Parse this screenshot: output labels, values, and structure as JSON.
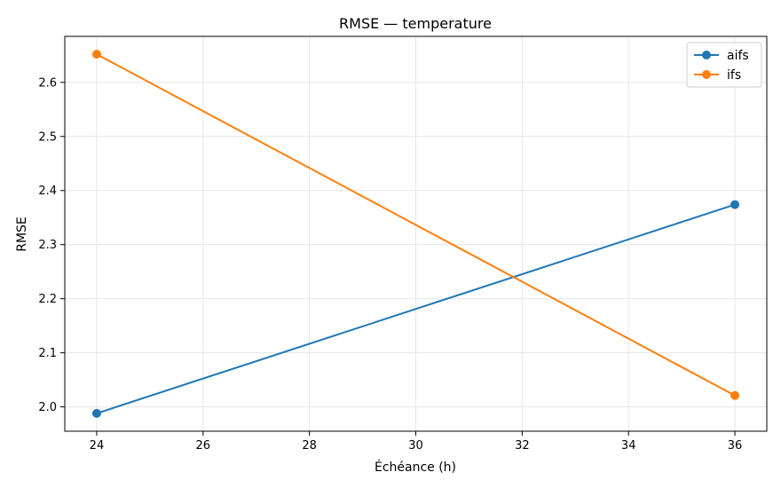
{
  "chart_data": {
    "type": "line",
    "title": "RMSE — temperature",
    "xlabel": "Échéance (h)",
    "ylabel": "RMSE",
    "xlim": [
      23.4,
      36.6
    ],
    "ylim": [
      1.955,
      2.685
    ],
    "xticks": [
      24,
      26,
      28,
      30,
      32,
      34,
      36
    ],
    "yticks": [
      2.0,
      2.1,
      2.2,
      2.3,
      2.4,
      2.5,
      2.6
    ],
    "grid": true,
    "legend_position": "top-right",
    "x": [
      24,
      36
    ],
    "series": [
      {
        "name": "aifs",
        "color": "#1f77b4",
        "values": [
          1.988,
          2.374
        ]
      },
      {
        "name": "ifs",
        "color": "#ff7f0e",
        "values": [
          2.652,
          2.021
        ]
      }
    ]
  }
}
